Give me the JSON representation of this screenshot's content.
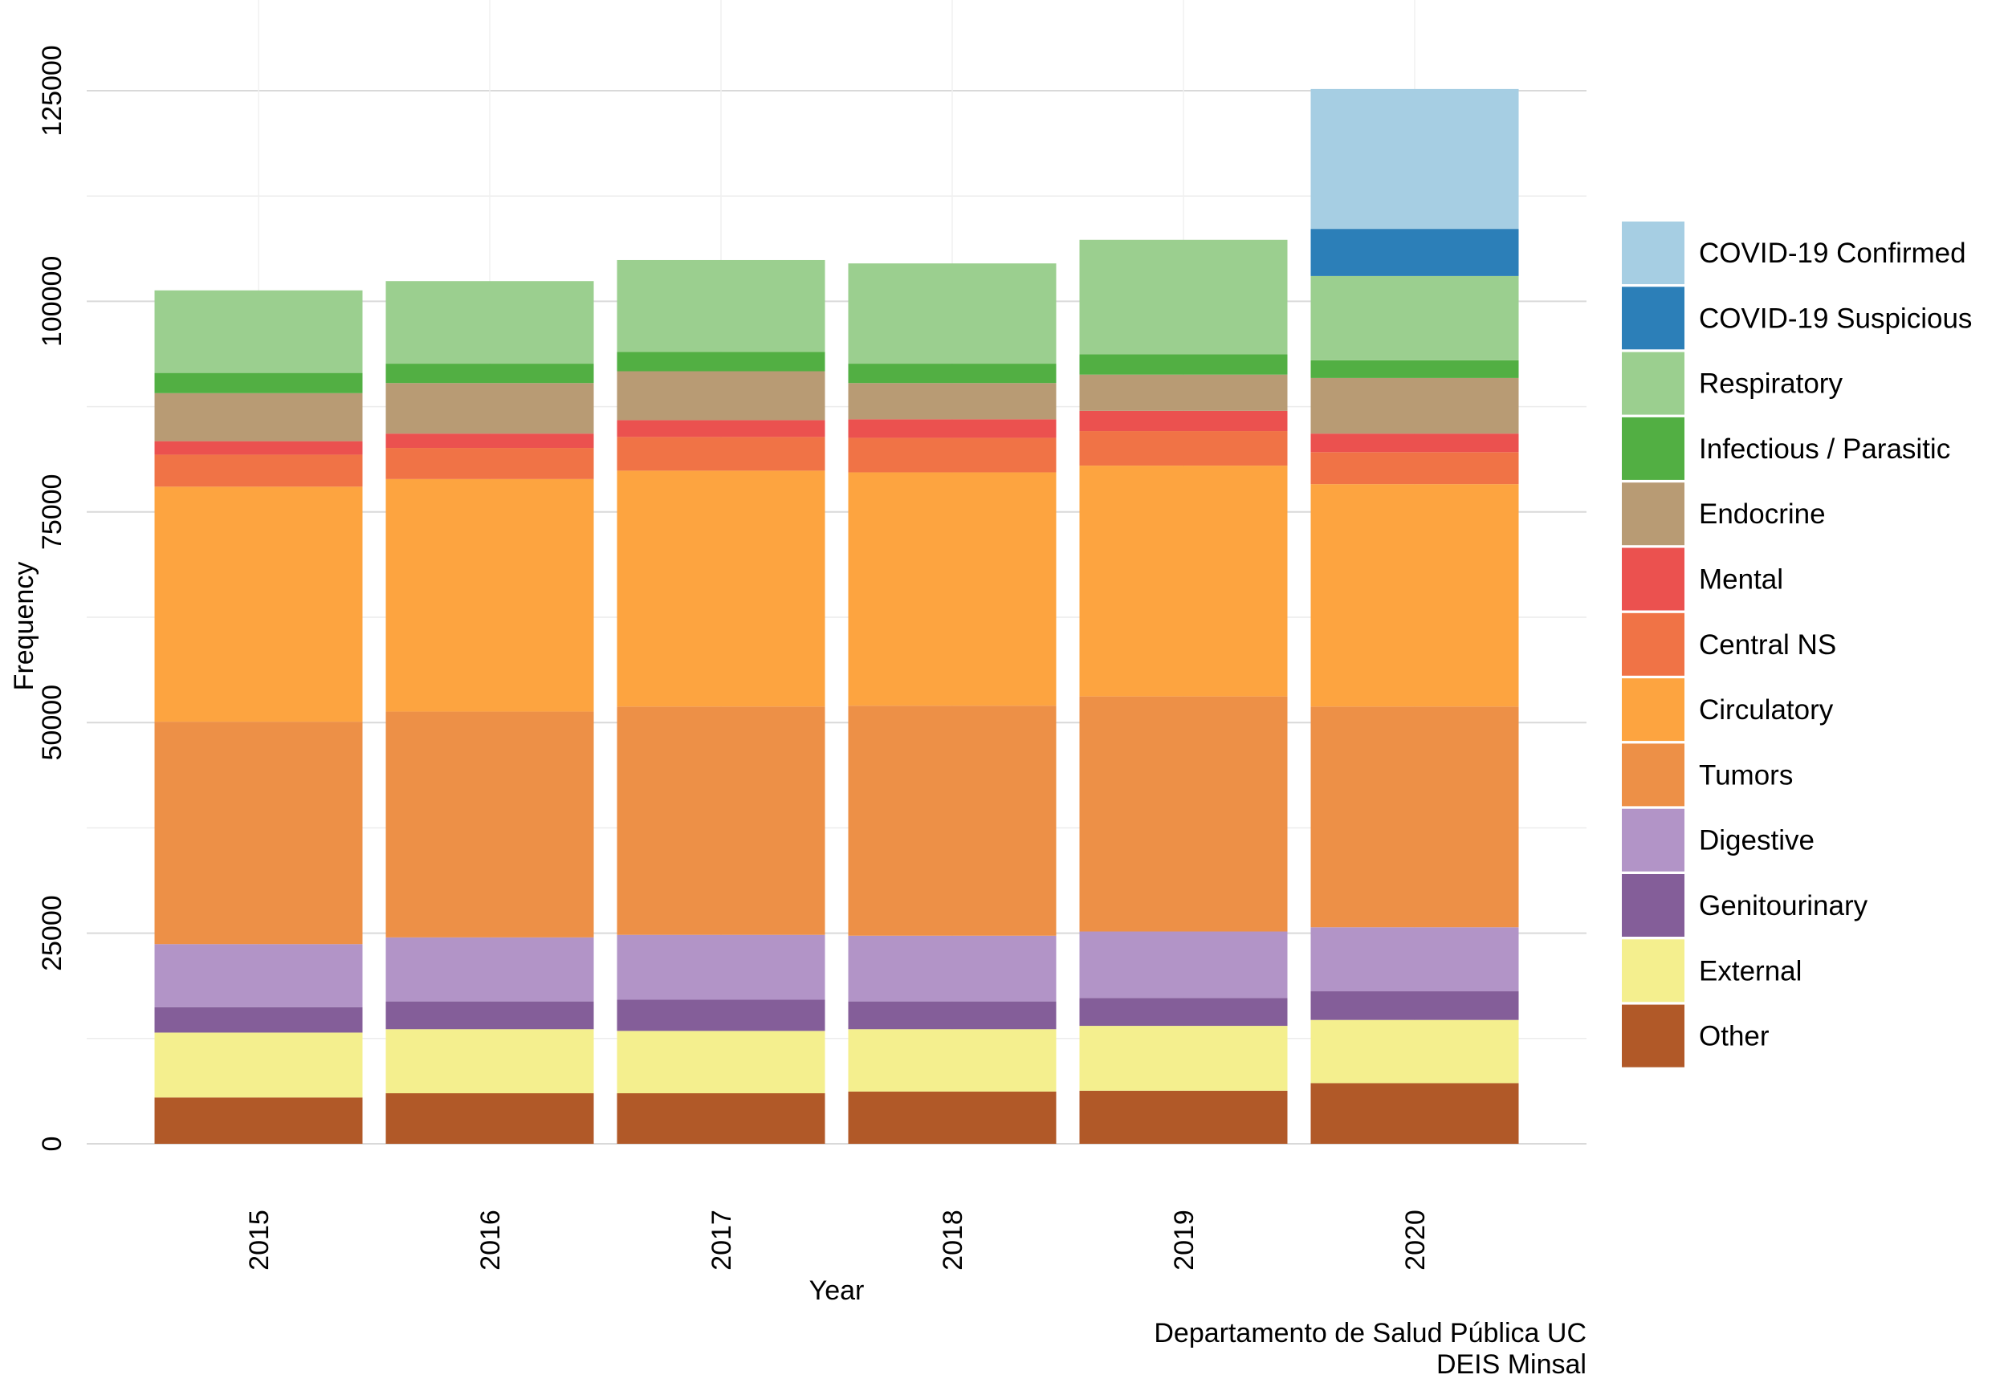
{
  "chart_data": {
    "type": "bar",
    "stacked": true,
    "xlabel": "Year",
    "ylabel": "Frequency",
    "ylim": [
      0,
      125000
    ],
    "yticks": [
      0,
      25000,
      50000,
      75000,
      100000,
      125000
    ],
    "grid": true,
    "legend_position": "right",
    "caption": [
      "Departamento de Salud Pública UC",
      "DEIS Minsal"
    ],
    "categories": [
      "2015",
      "2016",
      "2017",
      "2018",
      "2019",
      "2020"
    ],
    "series": [
      {
        "name": "Other",
        "color": "#B15928",
        "values": [
          5500,
          6000,
          6000,
          6200,
          6300,
          7200
        ]
      },
      {
        "name": "External",
        "color": "#F4EF8E",
        "values": [
          7700,
          7600,
          7400,
          7400,
          7700,
          7500
        ]
      },
      {
        "name": "Genitourinary",
        "color": "#845E99",
        "values": [
          3000,
          3300,
          3700,
          3300,
          3300,
          3400
        ]
      },
      {
        "name": "Digestive",
        "color": "#B294C7",
        "values": [
          7500,
          7600,
          7700,
          7800,
          7900,
          7600
        ]
      },
      {
        "name": "Tumors",
        "color": "#ED9047",
        "values": [
          26400,
          26800,
          27100,
          27300,
          27900,
          26200
        ]
      },
      {
        "name": "Circulatory",
        "color": "#FDA440",
        "values": [
          27900,
          27600,
          28000,
          27700,
          27400,
          26400
        ]
      },
      {
        "name": "Central NS",
        "color": "#F07346",
        "values": [
          3800,
          3700,
          4000,
          4100,
          4100,
          3800
        ]
      },
      {
        "name": "Mental",
        "color": "#EB514F",
        "values": [
          1600,
          1700,
          2000,
          2200,
          2400,
          2200
        ]
      },
      {
        "name": "Endocrine",
        "color": "#B89B74",
        "values": [
          5700,
          6000,
          5800,
          4300,
          4300,
          6600
        ]
      },
      {
        "name": "Infectious / Parasitic",
        "color": "#52AF43",
        "values": [
          2400,
          2300,
          2300,
          2300,
          2400,
          2100
        ]
      },
      {
        "name": "Respiratory",
        "color": "#9BCF8F",
        "values": [
          9800,
          9800,
          10900,
          11900,
          13600,
          10000
        ]
      },
      {
        "name": "COVID-19 Suspicious",
        "color": "#2C7FB8",
        "values": [
          0,
          0,
          0,
          0,
          0,
          5600
        ]
      },
      {
        "name": "COVID-19 Confirmed",
        "color": "#A6CEE3",
        "values": [
          0,
          0,
          0,
          0,
          0,
          16600
        ]
      }
    ]
  }
}
